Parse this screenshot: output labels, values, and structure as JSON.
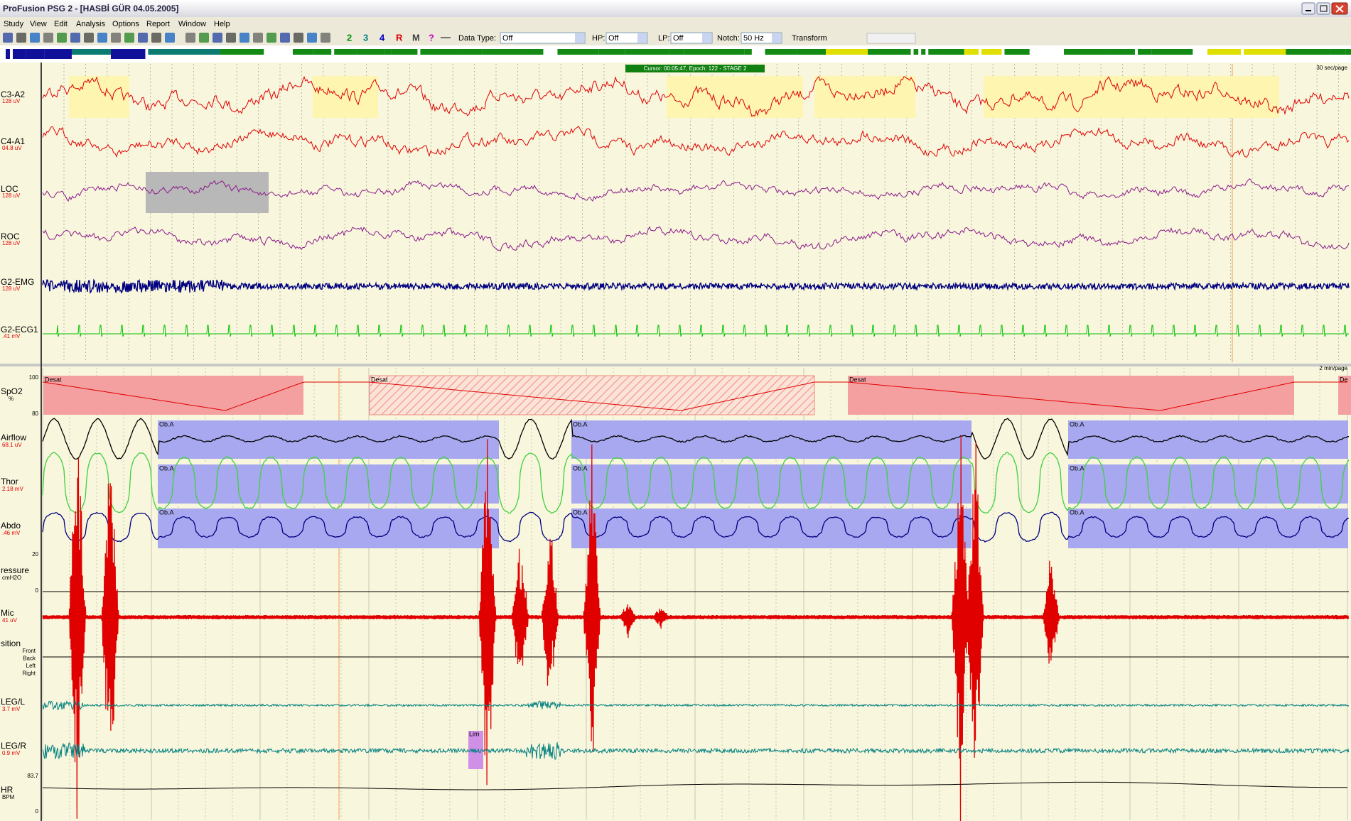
{
  "window": {
    "title": "ProFusion PSG 2 - [HASBİ GÜR 04.05.2005]",
    "menu": [
      "Study",
      "View",
      "Edit",
      "Analysis",
      "Options",
      "Report",
      "Window",
      "Help"
    ]
  },
  "toolbar": {
    "buttons": [
      "2",
      "3",
      "4",
      "R",
      "M",
      "?"
    ],
    "data_type_label": "Data Type:",
    "data_type": "Off",
    "hp_label": "HP:",
    "hp": "Off",
    "lp_label": "LP:",
    "lp": "Off",
    "notch_label": "Notch:",
    "notch": "50 Hz",
    "transform": "Transform"
  },
  "cursor": "Cursor: 00:05:47, Epoch: 122 - STAGE 2",
  "top_panel": {
    "scale": "30 sec/page",
    "channels": [
      {
        "label": "C3-A2",
        "unit": "128 uV"
      },
      {
        "label": "C4-A1",
        "unit": "04.8 uV"
      },
      {
        "label": "LOC",
        "unit": "128 uV"
      },
      {
        "label": "ROC",
        "unit": "128 uV"
      },
      {
        "label": "G2-EMG",
        "unit": "128 uV"
      },
      {
        "label": "G2-ECG1",
        "unit": ".41 mV"
      }
    ]
  },
  "bottom_panel": {
    "scale": "2 min/page",
    "channels": [
      {
        "label": "SpO2",
        "unit": "%",
        "scale_top": 100,
        "scale_bottom": 80
      },
      {
        "label": "Airflow",
        "unit": "68.1 uV"
      },
      {
        "label": "Thor",
        "unit": "2.18 mV"
      },
      {
        "label": "Abdo",
        "unit": ".46 mV"
      },
      {
        "label": "ressure",
        "unit": "cmH2O",
        "scale_top": 20,
        "scale_bottom": 0
      },
      {
        "label": "Mic",
        "unit": "41 uV"
      },
      {
        "label": "sition",
        "unit": ""
      },
      {
        "label": "LEG/L",
        "unit": "3.7 mV"
      },
      {
        "label": "LEG/R",
        "unit": "0.9 mV"
      },
      {
        "label": "HR",
        "unit": "BPM",
        "scale_top": 83.7,
        "scale_bottom": 0
      }
    ],
    "position_labels": [
      "Front",
      "Back",
      "Left",
      "Right"
    ],
    "events": {
      "desat": "Desat",
      "desat_cut": "De",
      "obstructive": "Ob.A",
      "limb": "Lim"
    }
  }
}
